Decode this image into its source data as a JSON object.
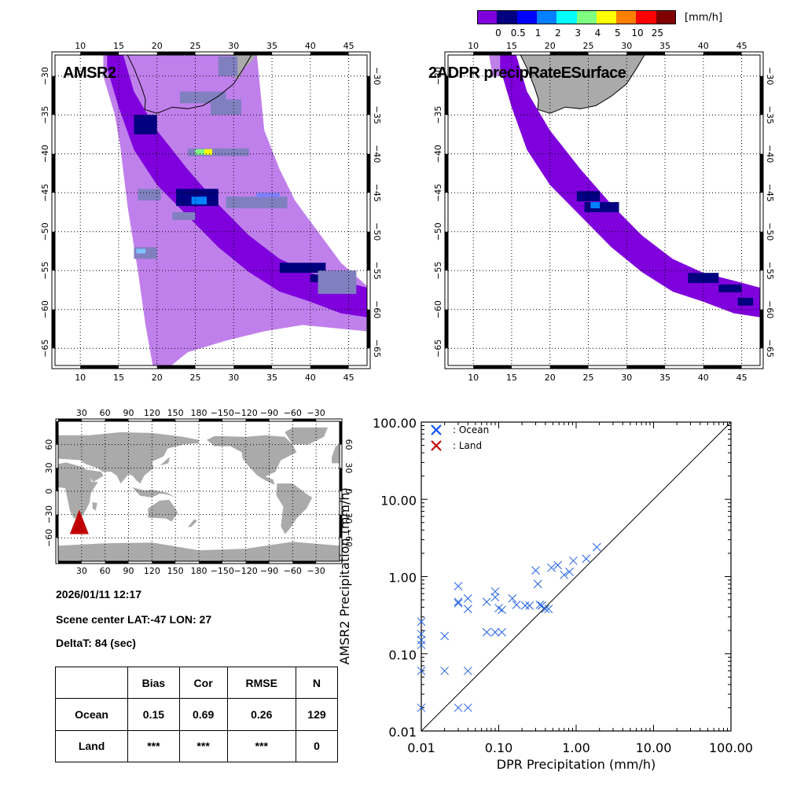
{
  "colorbar": {
    "unit": "[mm/h]",
    "colors": [
      "#7f00dd",
      "#000080",
      "#0000ff",
      "#0080ff",
      "#00ffff",
      "#80ff80",
      "#ffff00",
      "#ff8000",
      "#ff0000",
      "#800000"
    ],
    "tick_labels": [
      "0",
      "0.5",
      "1",
      "2",
      "3",
      "4",
      "5",
      "10",
      "25"
    ]
  },
  "maps": {
    "amsr2": {
      "title": "AMSR2",
      "lon_ticks": [
        "10",
        "15",
        "20",
        "25",
        "30",
        "35",
        "40",
        "45"
      ],
      "lat_ticks": [
        "-30",
        "-35",
        "-40",
        "-45",
        "-50",
        "-55",
        "-60",
        "-65"
      ],
      "lon_range": [
        6.7,
        47.4
      ],
      "lat_range": [
        -67.2,
        -27.3
      ]
    },
    "dpr": {
      "title": "2ADPR precipRateESurface",
      "lon_ticks": [
        "10",
        "15",
        "20",
        "25",
        "30",
        "35",
        "40",
        "45"
      ],
      "lat_ticks": [
        "-30",
        "-35",
        "-40",
        "-45",
        "-50",
        "-55",
        "-60",
        "-65"
      ],
      "lon_range": [
        6.7,
        47.4
      ],
      "lat_range": [
        -67.2,
        -27.3
      ]
    },
    "world": {
      "lon_ticks": [
        "30",
        "60",
        "90",
        "120",
        "150",
        "180",
        "-150",
        "-120",
        "-90",
        "-60",
        "-30"
      ],
      "lat_ticks": [
        "60",
        "30",
        "0",
        "-30",
        "-60"
      ],
      "marker": {
        "lat": -47,
        "lon": 27,
        "color": "#c00000"
      }
    }
  },
  "info": {
    "datetime": "2026/01/11 12:17",
    "scene_center": "Scene center LAT:-47   LON:  27",
    "deltat": "DeltaT:   84 (sec)"
  },
  "stats_table": {
    "headers": [
      "",
      "Bias",
      "Cor",
      "RMSE",
      "N"
    ],
    "rows": [
      {
        "label": "Ocean",
        "bias": "0.15",
        "cor": "0.69",
        "rmse": "0.26",
        "n": "129"
      },
      {
        "label": "Land",
        "bias": "***",
        "cor": "***",
        "rmse": "***",
        "n": "0"
      }
    ]
  },
  "chart_data": {
    "type": "scatter",
    "title": "",
    "xlabel": "DPR Precipitation (mm/h)",
    "ylabel": "AMSR2 Precipitation (mm/h)",
    "xscale": "log",
    "yscale": "log",
    "xlim": [
      0.01,
      100
    ],
    "ylim": [
      0.01,
      100
    ],
    "x_tick_labels": [
      "0.01",
      "0.10",
      "1.00",
      "10.00",
      "100.00"
    ],
    "y_tick_labels": [
      "0.01",
      "0.10",
      "1.00",
      "10.00",
      "100.00"
    ],
    "reference_line": "1:1",
    "legend": {
      "placement": "top-left",
      "entries": [
        {
          "label": ": Ocean",
          "color": "#0050ff"
        },
        {
          "label": ": Land",
          "color": "#c00000"
        }
      ]
    },
    "series": [
      {
        "name": "Ocean",
        "color": "#2060e0",
        "points": [
          [
            0.01,
            0.02
          ],
          [
            0.01,
            0.06
          ],
          [
            0.01,
            0.13
          ],
          [
            0.01,
            0.15
          ],
          [
            0.01,
            0.18
          ],
          [
            0.01,
            0.26
          ],
          [
            0.02,
            0.17
          ],
          [
            0.02,
            0.06
          ],
          [
            0.03,
            0.47
          ],
          [
            0.03,
            0.75
          ],
          [
            0.03,
            0.45
          ],
          [
            0.04,
            0.52
          ],
          [
            0.04,
            0.38
          ],
          [
            0.04,
            0.06
          ],
          [
            0.03,
            0.02
          ],
          [
            0.04,
            0.02
          ],
          [
            0.07,
            0.47
          ],
          [
            0.07,
            0.19
          ],
          [
            0.09,
            0.54
          ],
          [
            0.09,
            0.64
          ],
          [
            0.1,
            0.39
          ],
          [
            0.11,
            0.37
          ],
          [
            0.09,
            0.19
          ],
          [
            0.11,
            0.19
          ],
          [
            0.15,
            0.52
          ],
          [
            0.17,
            0.43
          ],
          [
            0.22,
            0.42
          ],
          [
            0.25,
            0.42
          ],
          [
            0.3,
            1.2
          ],
          [
            0.32,
            0.8
          ],
          [
            0.34,
            0.43
          ],
          [
            0.36,
            0.42
          ],
          [
            0.4,
            0.38
          ],
          [
            0.44,
            0.38
          ],
          [
            0.48,
            1.3
          ],
          [
            0.58,
            1.4
          ],
          [
            0.7,
            1.05
          ],
          [
            0.82,
            1.15
          ],
          [
            0.92,
            1.6
          ],
          [
            1.35,
            1.7
          ],
          [
            1.85,
            2.4
          ]
        ]
      },
      {
        "name": "Land",
        "color": "#c00000",
        "points": []
      }
    ]
  }
}
